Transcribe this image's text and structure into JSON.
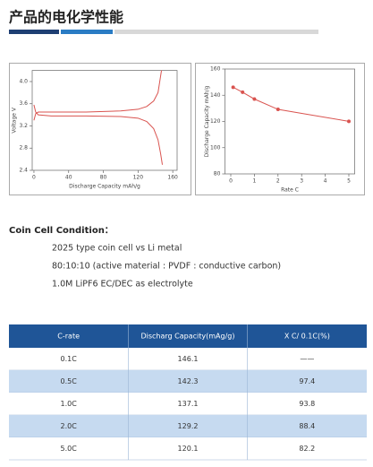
{
  "header": {
    "title": "产品的电化学性能"
  },
  "chart_data": [
    {
      "type": "line",
      "xlabel": "Discharge Capacity mAh/g",
      "ylabel": "Voltage V",
      "xlim": [
        -2,
        165
      ],
      "ylim": [
        2.4,
        4.2
      ],
      "xticks": [
        0,
        40,
        80,
        120,
        160
      ],
      "yticks": [
        2.4,
        2.8,
        3.2,
        3.6,
        {
          "value": 4,
          "label": "4.0"
        }
      ],
      "markers": false,
      "series": [
        {
          "color": "#d9534f",
          "x": [
            0,
            2,
            5,
            20,
            60,
            100,
            120,
            130,
            138,
            143,
            145,
            147
          ],
          "values": [
            3.3,
            3.42,
            3.45,
            3.45,
            3.45,
            3.47,
            3.5,
            3.55,
            3.65,
            3.8,
            4.0,
            4.2
          ]
        },
        {
          "color": "#d9534f",
          "x": [
            0,
            2,
            5,
            20,
            60,
            100,
            120,
            130,
            138,
            143,
            146,
            148
          ],
          "values": [
            3.58,
            3.45,
            3.4,
            3.38,
            3.38,
            3.37,
            3.34,
            3.28,
            3.15,
            2.95,
            2.7,
            2.5
          ]
        }
      ]
    },
    {
      "type": "line",
      "xlabel": "Rate C",
      "ylabel": "Discharge Capacity mAh/g",
      "xlim": [
        -0.25,
        5.25
      ],
      "ylim": [
        80,
        160
      ],
      "xticks": [
        0,
        1,
        2,
        3,
        4,
        5
      ],
      "yticks": [
        80,
        100,
        120,
        140,
        160
      ],
      "markers": true,
      "series": [
        {
          "color": "#d9534f",
          "x": [
            0.1,
            0.5,
            1,
            2,
            5
          ],
          "values": [
            146.1,
            142.3,
            137.1,
            129.2,
            120.1
          ]
        }
      ]
    }
  ],
  "condition": {
    "title": "Coin Cell Condition：",
    "lines": [
      "2025 type coin cell vs Li metal",
      "80:10:10 (active material : PVDF : conductive carbon)",
      "1.0M LiPF6 EC/DEC as electrolyte"
    ]
  },
  "table": {
    "columns": [
      "C-rate",
      "Discharg Capacity(mAg/g)",
      "X C/ 0.1C(%)"
    ],
    "rows": [
      [
        "0.1C",
        "146.1",
        "——"
      ],
      [
        "0.5C",
        "142.3",
        "97.4"
      ],
      [
        "1.0C",
        "137.1",
        "93.8"
      ],
      [
        "2.0C",
        "129.2",
        "88.4"
      ],
      [
        "5.0C",
        "120.1",
        "82.2"
      ]
    ]
  }
}
